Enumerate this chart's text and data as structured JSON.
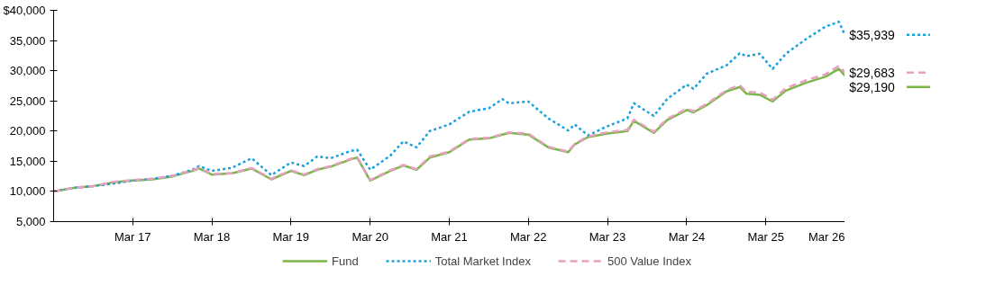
{
  "chart_data": {
    "type": "line",
    "x": [
      "2016-03",
      "2016-06",
      "2016-09",
      "2016-12",
      "2017-03",
      "2017-06",
      "2017-09",
      "2017-12",
      "2018-01",
      "2018-03",
      "2018-06",
      "2018-09",
      "2018-12",
      "2019-03",
      "2019-05",
      "2019-07",
      "2019-09",
      "2019-12",
      "2020-01",
      "2020-03",
      "2020-06",
      "2020-08",
      "2020-10",
      "2020-12",
      "2021-03",
      "2021-06",
      "2021-09",
      "2021-11",
      "2021-12",
      "2022-03",
      "2022-06",
      "2022-09",
      "2022-10",
      "2022-12",
      "2023-03",
      "2023-06",
      "2023-07",
      "2023-10",
      "2023-12",
      "2024-03",
      "2024-04",
      "2024-06",
      "2024-09",
      "2024-11",
      "2024-12",
      "2025-02",
      "2025-04",
      "2025-06",
      "2025-09",
      "2025-12",
      "2026-02",
      "2026-03"
    ],
    "series": [
      {
        "name": "Fund",
        "color": "#7ab648",
        "line_style": "solid",
        "values": [
          10000,
          10600,
          10900,
          11500,
          11800,
          12000,
          12500,
          13400,
          13800,
          12800,
          13000,
          13800,
          12000,
          13400,
          12700,
          13600,
          14100,
          15300,
          15600,
          11800,
          13400,
          14300,
          13600,
          15600,
          16500,
          18600,
          18800,
          19400,
          19700,
          19400,
          17300,
          16500,
          17800,
          19000,
          19600,
          20000,
          21700,
          19700,
          21800,
          23500,
          23100,
          24300,
          26600,
          27300,
          26200,
          26000,
          24900,
          26700,
          28000,
          29000,
          30300,
          29190
        ],
        "value_labels": [
          null,
          null,
          null,
          null,
          null,
          null,
          null,
          null,
          null,
          null,
          null,
          null,
          null,
          null,
          null,
          null,
          null,
          null,
          null,
          null,
          null,
          null,
          null,
          null,
          null,
          null,
          null,
          null,
          null,
          null,
          null,
          null,
          null,
          null,
          null,
          null,
          null,
          null,
          null,
          null,
          null,
          null,
          null,
          null,
          null,
          null,
          null,
          null,
          null,
          null,
          null,
          "$29,190"
        ]
      },
      {
        "name": "Total Market Index",
        "color": "#1ba1dc",
        "line_style": "dotted",
        "values": [
          10000,
          10600,
          10900,
          11300,
          11800,
          12100,
          12600,
          13600,
          14200,
          13400,
          13900,
          15500,
          12700,
          14800,
          14200,
          15800,
          15500,
          16700,
          16900,
          13600,
          15900,
          18300,
          17300,
          20000,
          21100,
          23200,
          23800,
          25300,
          24600,
          24900,
          22100,
          20100,
          21100,
          19300,
          20800,
          22100,
          24600,
          22500,
          25300,
          27700,
          27000,
          29500,
          30900,
          32900,
          32400,
          32800,
          30300,
          32800,
          35200,
          37300,
          38100,
          35939
        ],
        "value_labels": [
          null,
          null,
          null,
          null,
          null,
          null,
          null,
          null,
          null,
          null,
          null,
          null,
          null,
          null,
          null,
          null,
          null,
          null,
          null,
          null,
          null,
          null,
          null,
          null,
          null,
          null,
          null,
          null,
          null,
          null,
          null,
          null,
          null,
          null,
          null,
          null,
          null,
          null,
          null,
          null,
          null,
          null,
          null,
          null,
          null,
          null,
          null,
          null,
          null,
          null,
          null,
          "$35,939"
        ]
      },
      {
        "name": "500 Value Index",
        "color": "#e8a0c0",
        "line_style": "dashed",
        "values": [
          10000,
          10600,
          10900,
          11600,
          11900,
          12100,
          12600,
          13500,
          13900,
          12900,
          13000,
          13900,
          12100,
          13500,
          12800,
          13700,
          14200,
          15400,
          15700,
          11900,
          13500,
          14400,
          13700,
          15800,
          16600,
          18700,
          18900,
          19500,
          19800,
          19600,
          17400,
          16600,
          17900,
          19100,
          19800,
          20200,
          21900,
          19900,
          22000,
          23700,
          23300,
          24500,
          26800,
          27600,
          26500,
          26400,
          25200,
          27100,
          28400,
          29400,
          30800,
          29683
        ],
        "value_labels": [
          null,
          null,
          null,
          null,
          null,
          null,
          null,
          null,
          null,
          null,
          null,
          null,
          null,
          null,
          null,
          null,
          null,
          null,
          null,
          null,
          null,
          null,
          null,
          null,
          null,
          null,
          null,
          null,
          null,
          null,
          null,
          null,
          null,
          null,
          null,
          null,
          null,
          null,
          null,
          null,
          null,
          null,
          null,
          null,
          null,
          null,
          null,
          null,
          null,
          null,
          null,
          "$29,683"
        ]
      }
    ],
    "xlim": [
      "2016-03",
      "2026-03"
    ],
    "xticks": [
      {
        "value": "2017-03",
        "label": "Mar 17"
      },
      {
        "value": "2018-03",
        "label": "Mar 18"
      },
      {
        "value": "2019-03",
        "label": "Mar 19"
      },
      {
        "value": "2020-03",
        "label": "Mar 20"
      },
      {
        "value": "2021-03",
        "label": "Mar 21"
      },
      {
        "value": "2022-03",
        "label": "Mar 22"
      },
      {
        "value": "2023-03",
        "label": "Mar 23"
      },
      {
        "value": "2024-03",
        "label": "Mar 24"
      },
      {
        "value": "2025-03",
        "label": "Mar 25"
      },
      {
        "value": "2026-03",
        "label": "Mar 26"
      }
    ],
    "ylim": [
      5000,
      40000
    ],
    "yticks": [
      {
        "value": 5000,
        "label": "5,000"
      },
      {
        "value": 10000,
        "label": "10,000"
      },
      {
        "value": 15000,
        "label": "15,000"
      },
      {
        "value": 20000,
        "label": "20,000"
      },
      {
        "value": 25000,
        "label": "25,000"
      },
      {
        "value": 30000,
        "label": "30,000"
      },
      {
        "value": 35000,
        "label": "35,000"
      },
      {
        "value": 40000,
        "label": "$40,000"
      }
    ],
    "grid": false,
    "legend": "bottom"
  }
}
